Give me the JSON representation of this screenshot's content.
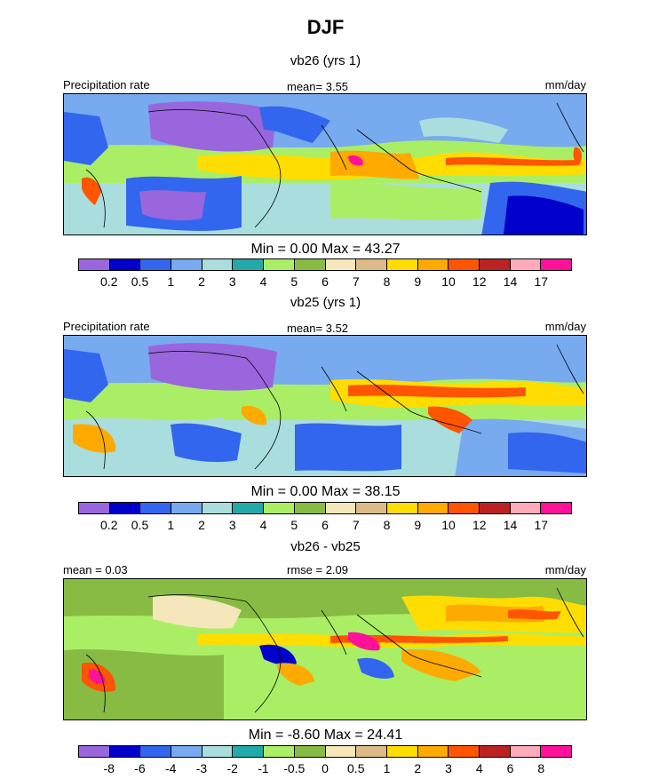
{
  "figure": {
    "title": "DJF"
  },
  "panels": [
    {
      "subtitle": "vb26 (yrs 1)",
      "left_label": "Precipitation rate",
      "center_label": "mean=   3.55",
      "units": "mm/day",
      "min_max": "Min =   0.00 Max =  43.27",
      "colorbar": {
        "colors": [
          "#9966dd",
          "#0000cc",
          "#3366ee",
          "#77aaee",
          "#aadddd",
          "#22aaaa",
          "#aaee66",
          "#88bb44",
          "#f5e6bb",
          "#ddbb88",
          "#ffdd00",
          "#ffaa00",
          "#ff5500",
          "#bb2222",
          "#ffaabb",
          "#ff1199"
        ],
        "ticks": [
          "0.2",
          "0.5",
          "1",
          "2",
          "3",
          "4",
          "5",
          "6",
          "7",
          "8",
          "9",
          "10",
          "12",
          "14",
          "17"
        ]
      }
    },
    {
      "subtitle": "vb25 (yrs 1)",
      "left_label": "Precipitation rate",
      "center_label": "mean=   3.52",
      "units": "mm/day",
      "min_max": "Min =   0.00 Max =  38.15",
      "colorbar": {
        "colors": [
          "#9966dd",
          "#0000cc",
          "#3366ee",
          "#77aaee",
          "#aadddd",
          "#22aaaa",
          "#aaee66",
          "#88bb44",
          "#f5e6bb",
          "#ddbb88",
          "#ffdd00",
          "#ffaa00",
          "#ff5500",
          "#bb2222",
          "#ffaabb",
          "#ff1199"
        ],
        "ticks": [
          "0.2",
          "0.5",
          "1",
          "2",
          "3",
          "4",
          "5",
          "6",
          "7",
          "8",
          "9",
          "10",
          "12",
          "14",
          "17"
        ]
      }
    },
    {
      "subtitle": "vb26 - vb25",
      "left_label": "mean =   0.03",
      "center_label": "rmse =   2.09",
      "units": "mm/day",
      "min_max": "Min =  -8.60 Max =  24.41",
      "colorbar": {
        "colors": [
          "#9966dd",
          "#0000cc",
          "#3366ee",
          "#77aaee",
          "#aadddd",
          "#22aaaa",
          "#aaee66",
          "#88bb44",
          "#f5e6bb",
          "#ddbb88",
          "#ffdd00",
          "#ffaa00",
          "#ff5500",
          "#bb2222",
          "#ffaabb",
          "#ff1199"
        ],
        "ticks": [
          "-8",
          "-6",
          "-4",
          "-3",
          "-2",
          "-1",
          "-0.5",
          "0",
          "0.5",
          "1",
          "2",
          "3",
          "4",
          "6",
          "8"
        ]
      }
    }
  ]
}
